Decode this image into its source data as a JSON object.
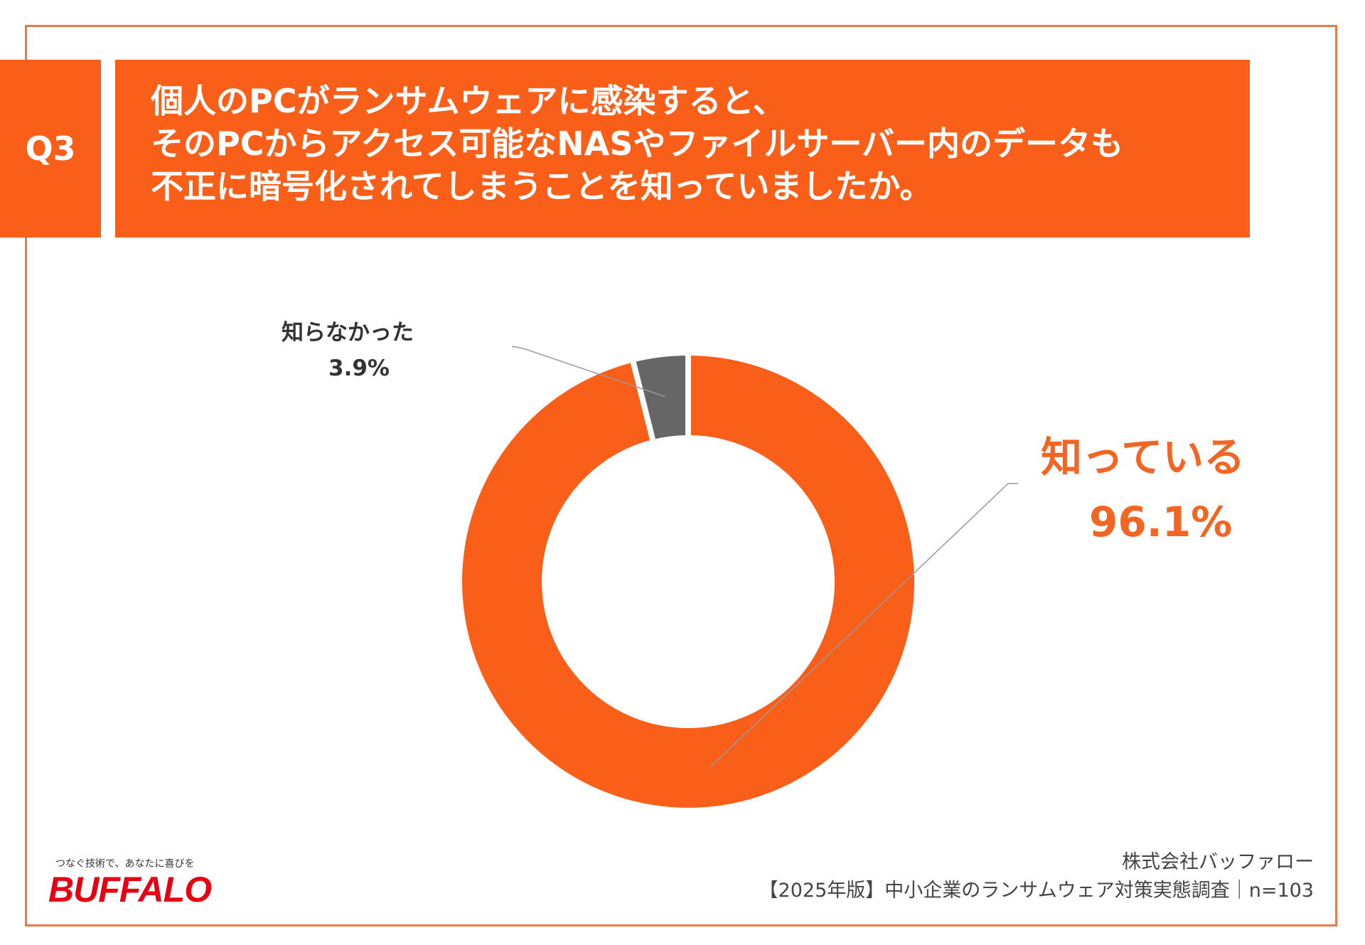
{
  "header": {
    "question_number": "Q3",
    "question_lines": [
      "個人のPCがランサムウェアに感染すると、",
      "そのPCからアクセス可能なNASやファイルサーバー内のデータも",
      "不正に暗号化されてしまうことを知っていましたか。"
    ]
  },
  "chart_data": {
    "type": "pie",
    "variant": "donut",
    "categories": [
      "知っている",
      "知らなかった"
    ],
    "values": [
      96.1,
      3.9
    ],
    "value_labels": [
      "96.1%",
      "3.9%"
    ],
    "colors": [
      "#fa5f1a",
      "#666666"
    ],
    "title": "",
    "legend": "none"
  },
  "footer": {
    "brand_tagline": "つなぐ技術で、あなたに喜びを",
    "brand_logo": "BUFFALO",
    "source_company": "株式会社バッファロー",
    "source_survey": "【2025年版】中小企業のランサムウェア対策実態調査｜n=103"
  }
}
